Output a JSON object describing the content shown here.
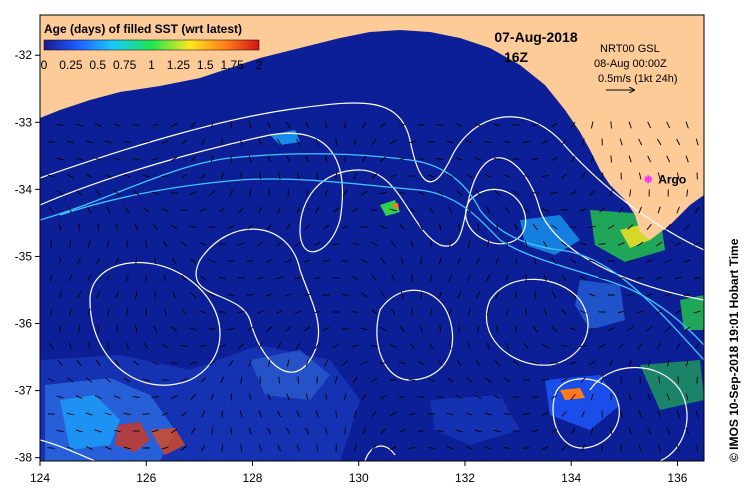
{
  "colors": {
    "land": "#fdcb97",
    "ocean": "#0d1f96",
    "ocean_light": "#1736b8",
    "contour": "#ffffff",
    "track": "#3fc8ff",
    "argo": "#ff2bff",
    "colorbar_stops": [
      "#1a1a8c",
      "#1e5aff",
      "#19c8ff",
      "#1ee650",
      "#ffe61e",
      "#ff7a19",
      "#d21414"
    ]
  },
  "legend": {
    "title": "Age (days) of filled SST (wrt latest)",
    "ticks": [
      "0",
      "0.25",
      "0.5",
      "0.75",
      "1",
      "1.25",
      "1.5",
      "1.75",
      "2"
    ]
  },
  "header": {
    "date": "07-Aug-2018",
    "time": "16Z"
  },
  "current_info": {
    "model": "NRT00 GSL",
    "valid": "08-Aug 00:00Z",
    "scale": "0.5m/s (1kt 24h)"
  },
  "argo_label": "Argo",
  "credit": "© IMOS 10-Sep-2018 19:01 Hobart Time",
  "axes": {
    "x_ticks": [
      "124",
      "126",
      "128",
      "130",
      "132",
      "134",
      "136"
    ],
    "y_ticks": [
      "-32",
      "-33",
      "-34",
      "-35",
      "-36",
      "-37",
      "-38"
    ],
    "xlim": [
      124,
      136.5
    ],
    "ylim": [
      -38.05,
      -31.4
    ]
  },
  "argo_position": {
    "lon": 135.45,
    "lat": -33.85
  }
}
